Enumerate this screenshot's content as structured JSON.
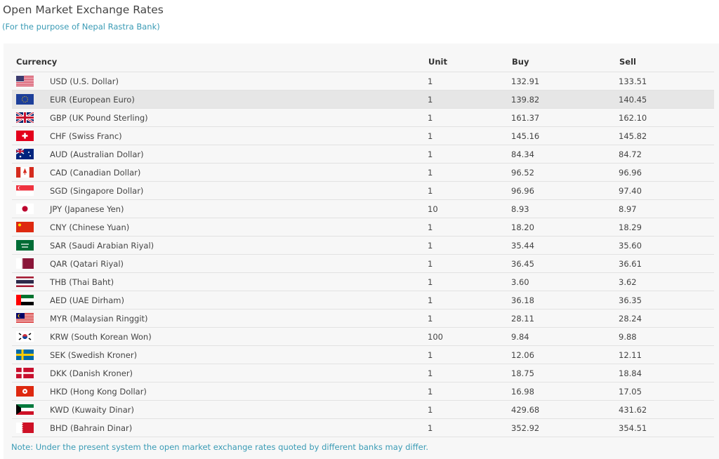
{
  "header": {
    "title": "Open Market Exchange Rates",
    "subtitle": "(For the purpose of Nepal Rastra Bank)"
  },
  "table": {
    "columns": [
      "Currency",
      "Unit",
      "Buy",
      "Sell"
    ],
    "highlighted_row": 1,
    "rows": [
      {
        "flag": "us-flag-icon",
        "currency": "USD (U.S. Dollar)",
        "unit": "1",
        "buy": "132.91",
        "sell": "133.51"
      },
      {
        "flag": "eu-flag-icon",
        "currency": "EUR (European Euro)",
        "unit": "1",
        "buy": "139.82",
        "sell": "140.45"
      },
      {
        "flag": "uk-flag-icon",
        "currency": "GBP (UK Pound Sterling)",
        "unit": "1",
        "buy": "161.37",
        "sell": "162.10"
      },
      {
        "flag": "ch-flag-icon",
        "currency": "CHF (Swiss Franc)",
        "unit": "1",
        "buy": "145.16",
        "sell": "145.82"
      },
      {
        "flag": "au-flag-icon",
        "currency": "AUD (Australian Dollar)",
        "unit": "1",
        "buy": "84.34",
        "sell": "84.72"
      },
      {
        "flag": "ca-flag-icon",
        "currency": "CAD (Canadian Dollar)",
        "unit": "1",
        "buy": "96.52",
        "sell": "96.96"
      },
      {
        "flag": "sg-flag-icon",
        "currency": "SGD (Singapore Dollar)",
        "unit": "1",
        "buy": "96.96",
        "sell": "97.40"
      },
      {
        "flag": "jp-flag-icon",
        "currency": "JPY (Japanese Yen)",
        "unit": "10",
        "buy": "8.93",
        "sell": "8.97"
      },
      {
        "flag": "cn-flag-icon",
        "currency": "CNY (Chinese Yuan)",
        "unit": "1",
        "buy": "18.20",
        "sell": "18.29"
      },
      {
        "flag": "sa-flag-icon",
        "currency": "SAR (Saudi Arabian Riyal)",
        "unit": "1",
        "buy": "35.44",
        "sell": "35.60"
      },
      {
        "flag": "qa-flag-icon",
        "currency": "QAR (Qatari Riyal)",
        "unit": "1",
        "buy": "36.45",
        "sell": "36.61"
      },
      {
        "flag": "th-flag-icon",
        "currency": "THB (Thai Baht)",
        "unit": "1",
        "buy": "3.60",
        "sell": "3.62"
      },
      {
        "flag": "ae-flag-icon",
        "currency": "AED (UAE Dirham)",
        "unit": "1",
        "buy": "36.18",
        "sell": "36.35"
      },
      {
        "flag": "my-flag-icon",
        "currency": "MYR (Malaysian Ringgit)",
        "unit": "1",
        "buy": "28.11",
        "sell": "28.24"
      },
      {
        "flag": "kr-flag-icon",
        "currency": "KRW (South Korean Won)",
        "unit": "100",
        "buy": "9.84",
        "sell": "9.88"
      },
      {
        "flag": "se-flag-icon",
        "currency": "SEK (Swedish Kroner)",
        "unit": "1",
        "buy": "12.06",
        "sell": "12.11"
      },
      {
        "flag": "dk-flag-icon",
        "currency": "DKK (Danish Kroner)",
        "unit": "1",
        "buy": "18.75",
        "sell": "18.84"
      },
      {
        "flag": "hk-flag-icon",
        "currency": "HKD (Hong Kong Dollar)",
        "unit": "1",
        "buy": "16.98",
        "sell": "17.05"
      },
      {
        "flag": "kw-flag-icon",
        "currency": "KWD (Kuwaity Dinar)",
        "unit": "1",
        "buy": "429.68",
        "sell": "431.62"
      },
      {
        "flag": "bh-flag-icon",
        "currency": "BHD (Bahrain Dinar)",
        "unit": "1",
        "buy": "352.92",
        "sell": "354.51"
      }
    ]
  },
  "note": "Note: Under the present system the open market exchange rates quoted by different banks may differ."
}
